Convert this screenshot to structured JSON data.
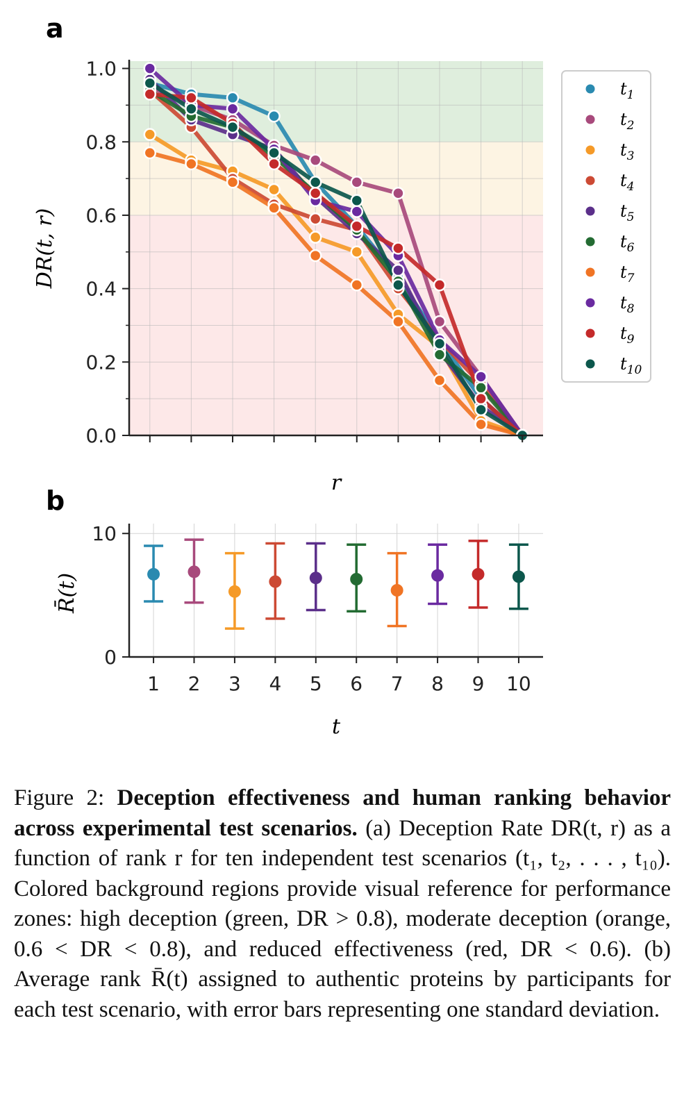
{
  "panel_a_letter": "a",
  "panel_b_letter": "b",
  "colors": {
    "t1": "#2a8ab0",
    "t2": "#a84a7c",
    "t3": "#f59a28",
    "t4": "#cc4a34",
    "t5": "#5b2f8a",
    "t6": "#236b32",
    "t7": "#f07424",
    "t8": "#6a2aa0",
    "t9": "#c42a2a",
    "t10": "#0c574c",
    "zone_high": "#dfeedd",
    "zone_moderate": "#fdf4e3",
    "zone_low": "#fde8e8"
  },
  "chart_data": [
    {
      "type": "line",
      "panel": "a",
      "xlabel": "r",
      "ylabel": "DR(t, r)",
      "xlim": [
        0.5,
        10.5
      ],
      "ylim": [
        0.0,
        1.02
      ],
      "x_ticks": [
        1,
        2,
        3,
        4,
        5,
        6,
        7,
        8,
        9,
        10
      ],
      "y_ticks": [
        0.0,
        0.2,
        0.4,
        0.6,
        0.8,
        1.0
      ],
      "y_tick_labels": [
        "0.0",
        "0.2",
        "0.4",
        "0.6",
        "0.8",
        "1.0"
      ],
      "grid": true,
      "legend_position": "right",
      "background_zones": [
        {
          "from": 0.8,
          "to": 1.02,
          "color": "#dfeedd"
        },
        {
          "from": 0.6,
          "to": 0.8,
          "color": "#fdf4e3"
        },
        {
          "from": 0.0,
          "to": 0.6,
          "color": "#fde8e8"
        }
      ],
      "x": [
        1,
        2,
        3,
        4,
        5,
        6,
        7,
        8,
        9,
        10
      ],
      "series": [
        {
          "name": "t1",
          "values": [
            0.96,
            0.93,
            0.92,
            0.87,
            0.69,
            0.57,
            0.43,
            0.26,
            0.1,
            0.0
          ]
        },
        {
          "name": "t2",
          "values": [
            0.95,
            0.9,
            0.86,
            0.79,
            0.75,
            0.69,
            0.66,
            0.31,
            0.16,
            0.0
          ]
        },
        {
          "name": "t3",
          "values": [
            0.82,
            0.75,
            0.72,
            0.67,
            0.54,
            0.5,
            0.33,
            0.24,
            0.04,
            0.0
          ]
        },
        {
          "name": "t4",
          "values": [
            0.94,
            0.84,
            0.7,
            0.63,
            0.59,
            0.56,
            0.4,
            0.26,
            0.14,
            0.0
          ]
        },
        {
          "name": "t5",
          "values": [
            0.97,
            0.86,
            0.82,
            0.78,
            0.65,
            0.55,
            0.45,
            0.23,
            0.08,
            0.0
          ]
        },
        {
          "name": "t6",
          "values": [
            0.94,
            0.87,
            0.84,
            0.76,
            0.66,
            0.56,
            0.42,
            0.22,
            0.13,
            0.0
          ]
        },
        {
          "name": "t7",
          "values": [
            0.77,
            0.74,
            0.69,
            0.62,
            0.49,
            0.41,
            0.31,
            0.15,
            0.03,
            0.0
          ]
        },
        {
          "name": "t8",
          "values": [
            1.0,
            0.9,
            0.89,
            0.78,
            0.64,
            0.61,
            0.49,
            0.26,
            0.16,
            0.0
          ]
        },
        {
          "name": "t9",
          "values": [
            0.93,
            0.92,
            0.85,
            0.74,
            0.66,
            0.57,
            0.51,
            0.41,
            0.1,
            0.0
          ]
        },
        {
          "name": "t10",
          "values": [
            0.96,
            0.89,
            0.84,
            0.77,
            0.69,
            0.64,
            0.41,
            0.25,
            0.07,
            0.0
          ]
        }
      ],
      "legend": [
        {
          "base": "t",
          "sub": "1"
        },
        {
          "base": "t",
          "sub": "2"
        },
        {
          "base": "t",
          "sub": "3"
        },
        {
          "base": "t",
          "sub": "4"
        },
        {
          "base": "t",
          "sub": "5"
        },
        {
          "base": "t",
          "sub": "6"
        },
        {
          "base": "t",
          "sub": "7"
        },
        {
          "base": "t",
          "sub": "8"
        },
        {
          "base": "t",
          "sub": "9"
        },
        {
          "base": "t",
          "sub": "10"
        }
      ]
    },
    {
      "type": "scatter",
      "panel": "b",
      "xlabel": "t",
      "ylabel": "R̄(t)",
      "xlim": [
        0.4,
        10.6
      ],
      "ylim": [
        0,
        10.8
      ],
      "y_ticks": [
        0,
        10
      ],
      "y_tick_labels": [
        "0",
        "10"
      ],
      "categories": [
        "1",
        "2",
        "3",
        "4",
        "5",
        "6",
        "7",
        "8",
        "9",
        "10"
      ],
      "grid": true,
      "mean": [
        6.7,
        6.9,
        5.3,
        6.1,
        6.4,
        6.3,
        5.4,
        6.6,
        6.7,
        6.5
      ],
      "error_low": [
        4.5,
        4.4,
        2.3,
        3.1,
        3.8,
        3.7,
        2.5,
        4.3,
        4.0,
        3.9
      ],
      "error_high": [
        9.0,
        9.5,
        8.4,
        9.2,
        9.2,
        9.1,
        8.4,
        9.1,
        9.4,
        9.1
      ]
    }
  ],
  "caption": {
    "label": "Figure 2: ",
    "title": "Deception effectiveness and human ranking behavior across experimental test scenarios.",
    "body": " (a) Deception Rate DR(t, r) as a function of rank r for ten independent test scenarios (t₁, t₂, . . . , t₁₀). Colored background regions provide visual reference for performance zones: high deception (green, DR > 0.8), moderate deception (orange, 0.6 < DR < 0.8), and reduced effectiveness (red, DR < 0.6). (b) Average rank R̄(t) assigned to authentic proteins by participants for each test scenario, with error bars representing one standard deviation."
  }
}
